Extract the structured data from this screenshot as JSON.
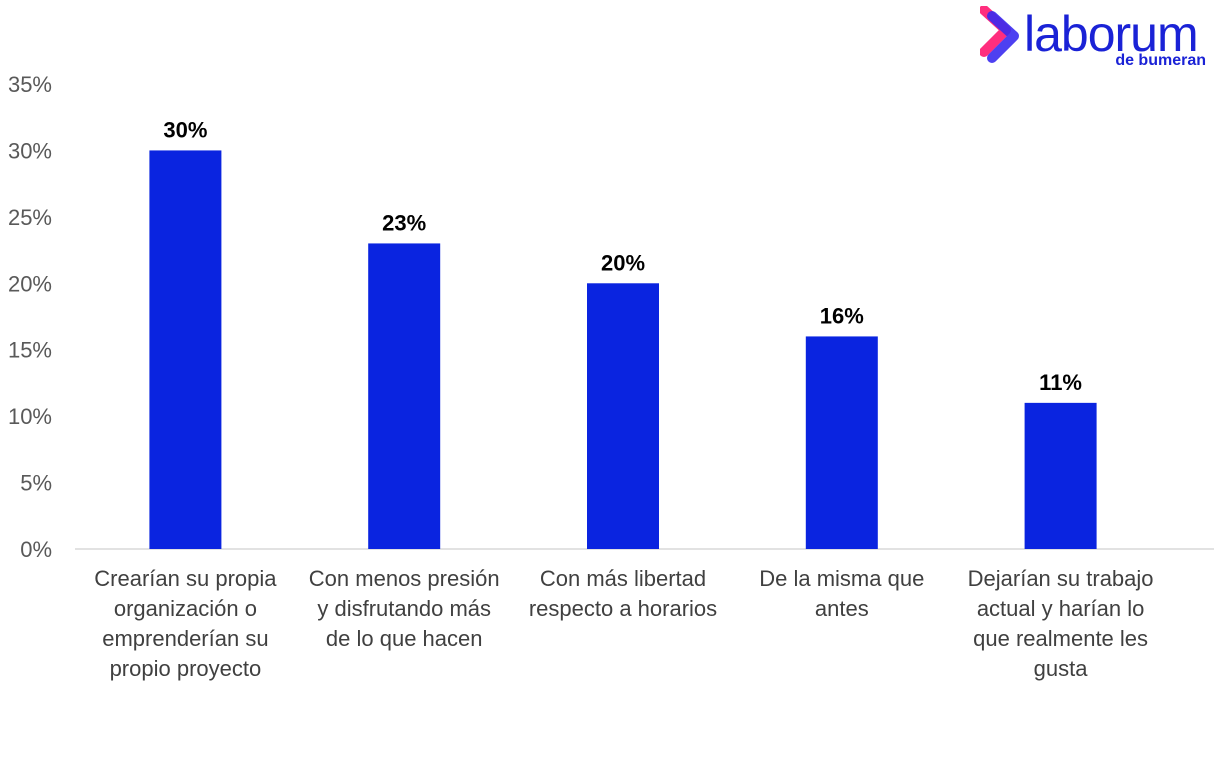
{
  "brand": {
    "name": "laborum",
    "tagline": "de bumeran",
    "color": "#1a22d6",
    "accent_colors": [
      "#ff2e7e",
      "#3a2bf0",
      "#00d6ff"
    ]
  },
  "chart_data": {
    "type": "bar",
    "categories": [
      [
        "Crearían su propia",
        "organización o",
        "emprenderían su",
        "propio proyecto"
      ],
      [
        "Con menos presión",
        "y disfrutando más",
        "de lo que hacen"
      ],
      [
        "Con más libertad",
        "respecto a horarios"
      ],
      [
        "De la misma que",
        "antes"
      ],
      [
        "Dejarían su trabajo",
        "actual y harían lo",
        "que realmente les",
        "gusta"
      ]
    ],
    "values": [
      30,
      23,
      20,
      16,
      11
    ],
    "data_labels": [
      "30%",
      "23%",
      "20%",
      "16%",
      "11%"
    ],
    "ylim": [
      0,
      35
    ],
    "yticks": [
      0,
      5,
      10,
      15,
      20,
      25,
      30,
      35
    ],
    "ytick_labels": [
      "0%",
      "5%",
      "10%",
      "15%",
      "20%",
      "25%",
      "30%",
      "35%"
    ],
    "bar_color": "#0a24e0",
    "grid": false,
    "legend": "none"
  }
}
